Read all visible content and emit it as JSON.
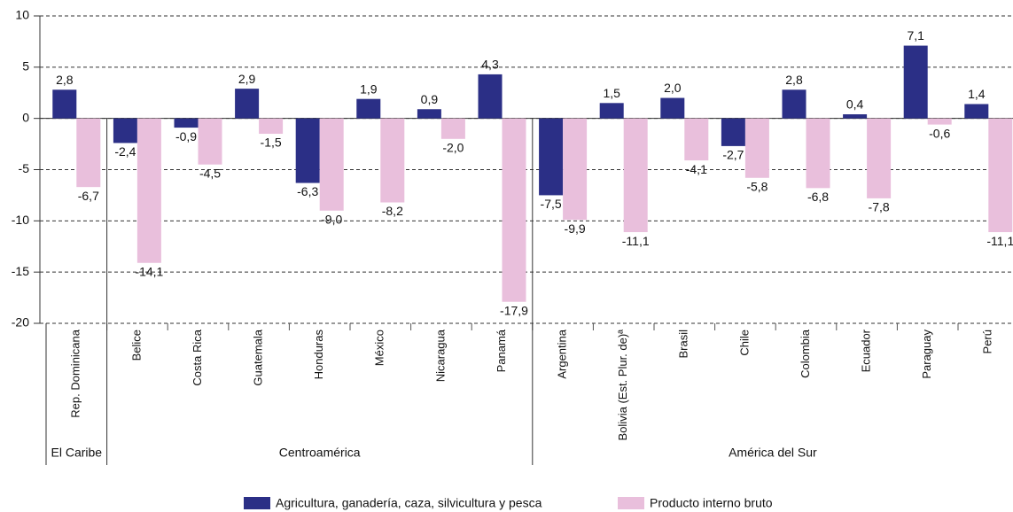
{
  "chart_data": {
    "type": "bar",
    "groups": [
      {
        "name": "El Caribe",
        "categories": [
          "Rep. Dominicana"
        ]
      },
      {
        "name": "Centroamérica",
        "categories": [
          "Belice",
          "Costa Rica",
          "Guatemala",
          "Honduras",
          "México",
          "Nicaragua",
          "Panamá"
        ]
      },
      {
        "name": "América del Sur",
        "categories": [
          "Argentina",
          "Bolivia (Est. Plur. de)ª",
          "Brasil",
          "Chile",
          "Colombia",
          "Ecuador",
          "Paraguay",
          "Perú"
        ]
      }
    ],
    "series": [
      {
        "name": "Agricultura, ganadería, caza, silvicultura y pesca",
        "color": "#2b2f86",
        "values": [
          2.8,
          -2.4,
          -0.9,
          2.9,
          -6.3,
          1.9,
          0.9,
          4.3,
          -7.5,
          1.5,
          2.0,
          -2.7,
          2.8,
          0.4,
          7.1,
          1.4
        ],
        "value_labels": [
          "2,8",
          "-2,4",
          "-0,9",
          "2,9",
          "-6,3",
          "1,9",
          "0,9",
          "4,3",
          "-7,5",
          "1,5",
          "2,0",
          "-2,7",
          "2,8",
          "0,4",
          "7,1",
          "1,4"
        ]
      },
      {
        "name": "Producto interno bruto",
        "color": "#e9bfdc",
        "values": [
          -6.7,
          -14.1,
          -4.5,
          -1.5,
          -9.0,
          -8.2,
          -2.0,
          -17.9,
          -9.9,
          -11.1,
          -4.1,
          -5.8,
          -6.8,
          -7.8,
          -0.6,
          -11.1
        ],
        "value_labels": [
          "-6,7",
          "-14,1",
          "-4,5",
          "-1,5",
          "-9,0",
          "-8,2",
          "-2,0",
          "-17,9",
          "-9,9",
          "-11,1",
          "-4,1",
          "-5,8",
          "-6,8",
          "-7,8",
          "-0,6",
          "-11,1"
        ]
      }
    ],
    "ylim": [
      -20,
      10
    ],
    "yticks": [
      10,
      5,
      0,
      -5,
      -10,
      -15,
      -20
    ],
    "grid": true
  }
}
